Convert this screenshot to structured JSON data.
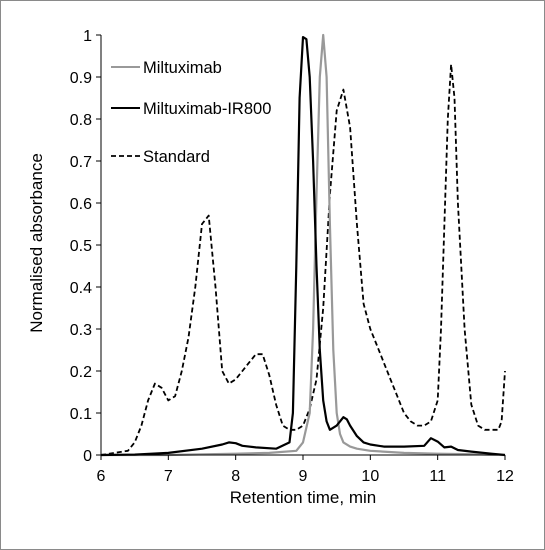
{
  "chart_data": {
    "type": "line",
    "title": "",
    "xlabel": "Retention time, min",
    "ylabel": "Normalised absorbance",
    "xlim": [
      6,
      12
    ],
    "ylim": [
      0,
      1
    ],
    "xticks": [
      "6",
      "7",
      "8",
      "9",
      "10",
      "11",
      "12"
    ],
    "yticks": [
      "0",
      "0.1",
      "0.2",
      "0.3",
      "0.4",
      "0.5",
      "0.6",
      "0.7",
      "0.8",
      "0.9",
      "1"
    ],
    "grid": false,
    "legend_position": "top-left",
    "series": [
      {
        "name": "Miltuximab",
        "color": "#999999",
        "dash": "solid",
        "x": [
          6.0,
          7.0,
          8.0,
          8.5,
          8.9,
          9.0,
          9.1,
          9.15,
          9.2,
          9.25,
          9.3,
          9.35,
          9.4,
          9.45,
          9.5,
          9.55,
          9.6,
          9.7,
          9.8,
          10.0,
          10.5,
          11.0,
          11.5,
          12.0
        ],
        "y": [
          0.0,
          0.0,
          0.003,
          0.005,
          0.01,
          0.03,
          0.1,
          0.3,
          0.62,
          0.9,
          1.0,
          0.9,
          0.55,
          0.25,
          0.1,
          0.05,
          0.03,
          0.02,
          0.015,
          0.01,
          0.005,
          0.003,
          0.002,
          0.0
        ]
      },
      {
        "name": "Miltuximab-IR800",
        "color": "#000000",
        "dash": "solid",
        "x": [
          6.0,
          6.5,
          7.0,
          7.5,
          7.8,
          7.9,
          8.0,
          8.1,
          8.3,
          8.6,
          8.8,
          8.85,
          8.9,
          8.95,
          9.0,
          9.05,
          9.1,
          9.15,
          9.2,
          9.25,
          9.3,
          9.35,
          9.4,
          9.5,
          9.6,
          9.65,
          9.7,
          9.8,
          9.9,
          10.0,
          10.2,
          10.5,
          10.8,
          10.9,
          11.0,
          11.1,
          11.2,
          11.3,
          11.5,
          11.8,
          12.0
        ],
        "y": [
          0.0,
          0.001,
          0.005,
          0.015,
          0.025,
          0.03,
          0.028,
          0.022,
          0.018,
          0.015,
          0.03,
          0.1,
          0.45,
          0.85,
          0.995,
          0.99,
          0.9,
          0.7,
          0.45,
          0.25,
          0.13,
          0.08,
          0.06,
          0.07,
          0.09,
          0.085,
          0.07,
          0.045,
          0.03,
          0.025,
          0.02,
          0.02,
          0.022,
          0.04,
          0.032,
          0.018,
          0.02,
          0.012,
          0.008,
          0.003,
          0.0
        ]
      },
      {
        "name": "Standard",
        "color": "#000000",
        "dash": "dashed",
        "x": [
          6.0,
          6.4,
          6.5,
          6.6,
          6.7,
          6.8,
          6.9,
          7.0,
          7.1,
          7.2,
          7.3,
          7.4,
          7.5,
          7.6,
          7.7,
          7.8,
          7.9,
          8.0,
          8.1,
          8.2,
          8.3,
          8.4,
          8.5,
          8.6,
          8.7,
          8.8,
          8.9,
          9.0,
          9.1,
          9.2,
          9.3,
          9.4,
          9.5,
          9.6,
          9.7,
          9.8,
          9.9,
          10.0,
          10.1,
          10.2,
          10.3,
          10.4,
          10.5,
          10.6,
          10.7,
          10.8,
          10.9,
          11.0,
          11.05,
          11.1,
          11.15,
          11.2,
          11.25,
          11.3,
          11.4,
          11.5,
          11.6,
          11.7,
          11.8,
          11.9,
          11.95,
          12.0
        ],
        "y": [
          0.0,
          0.01,
          0.03,
          0.07,
          0.13,
          0.17,
          0.16,
          0.13,
          0.14,
          0.2,
          0.28,
          0.4,
          0.55,
          0.57,
          0.4,
          0.2,
          0.17,
          0.18,
          0.2,
          0.22,
          0.24,
          0.24,
          0.19,
          0.12,
          0.07,
          0.06,
          0.06,
          0.07,
          0.11,
          0.18,
          0.35,
          0.62,
          0.82,
          0.87,
          0.78,
          0.55,
          0.36,
          0.3,
          0.26,
          0.22,
          0.18,
          0.14,
          0.1,
          0.08,
          0.07,
          0.07,
          0.08,
          0.13,
          0.3,
          0.55,
          0.8,
          0.93,
          0.85,
          0.6,
          0.3,
          0.12,
          0.07,
          0.06,
          0.06,
          0.06,
          0.08,
          0.2
        ]
      }
    ]
  }
}
